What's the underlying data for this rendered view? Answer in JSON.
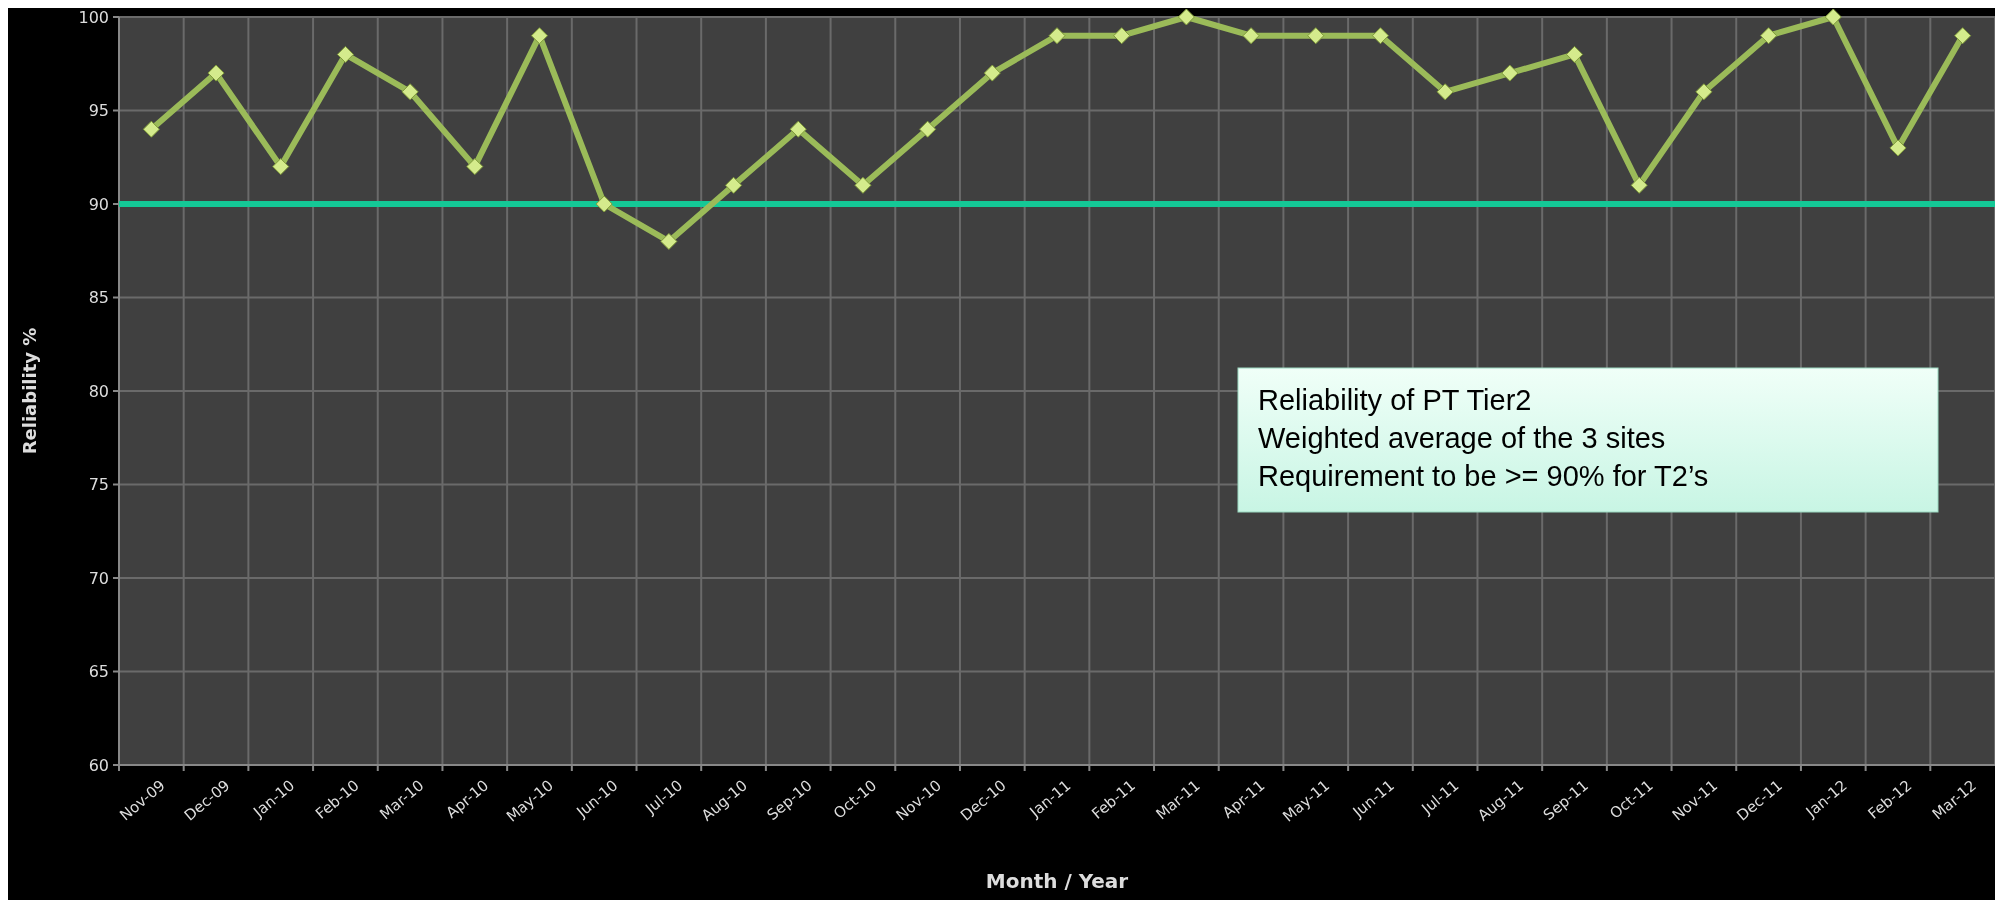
{
  "chart_data": {
    "type": "line",
    "xlabel": "Month / Year",
    "ylabel": "Reliability %",
    "categories": [
      "Nov-09",
      "Dec-09",
      "Jan-10",
      "Feb-10",
      "Mar-10",
      "Apr-10",
      "May-10",
      "Jun-10",
      "Jul-10",
      "Aug-10",
      "Sep-10",
      "Oct-10",
      "Nov-10",
      "Dec-10",
      "Jan-11",
      "Feb-11",
      "Mar-11",
      "Apr-11",
      "May-11",
      "Jun-11",
      "Jul-11",
      "Aug-11",
      "Sep-11",
      "Oct-11",
      "Nov-11",
      "Dec-11",
      "Jan-12",
      "Feb-12",
      "Mar-12"
    ],
    "series": [
      {
        "color": "#9bbb59",
        "values": [
          94,
          97,
          92,
          98,
          96,
          92,
          99,
          90,
          88,
          91,
          94,
          91,
          94,
          97,
          99,
          99,
          100,
          99,
          99,
          99,
          96,
          97,
          98,
          91,
          96,
          99,
          100,
          93,
          99
        ]
      }
    ],
    "ylim": [
      60,
      100
    ],
    "yticks": [
      60,
      65,
      70,
      75,
      80,
      85,
      90,
      95,
      100
    ],
    "grid": true,
    "marker": "diamond",
    "line_style": "solid",
    "ref_lines": [
      {
        "axis": "y",
        "value": 90,
        "color": "#14c896"
      }
    ],
    "annotations": [
      "Reliability of PT Tier2",
      "Weighted average of the 3 sites",
      "Requirement to be >= 90% for T2’s"
    ]
  }
}
